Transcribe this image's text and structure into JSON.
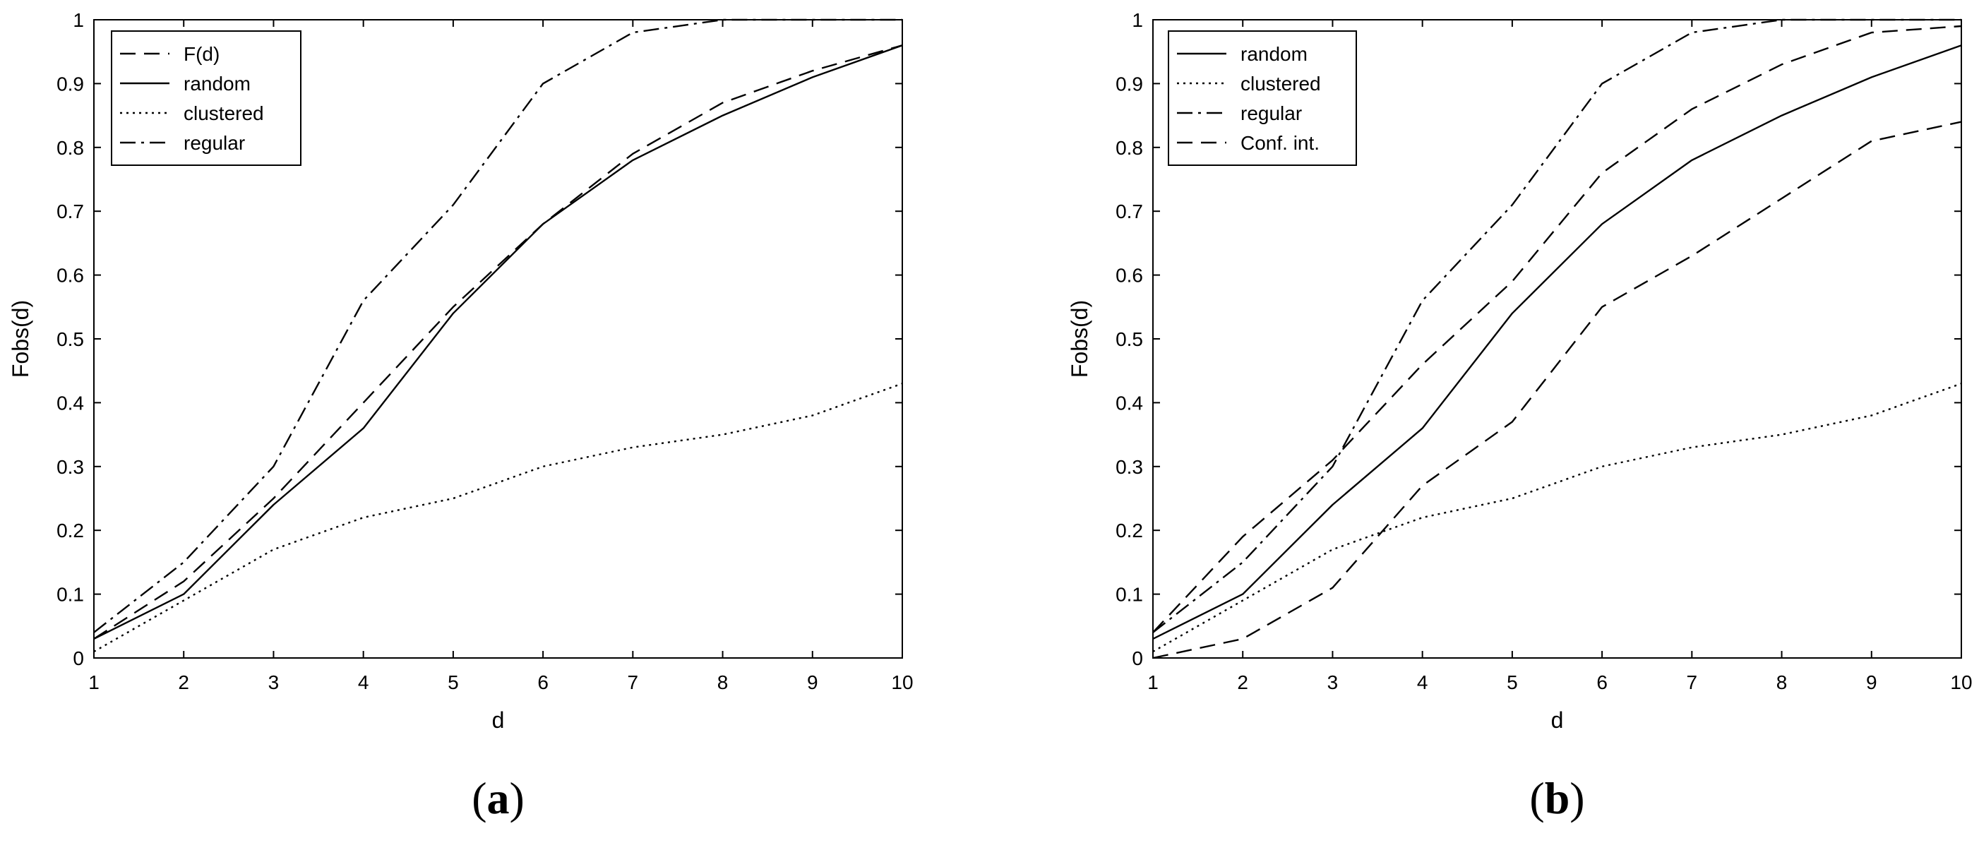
{
  "chart_data": [
    {
      "type": "line",
      "panel_label": "(a)",
      "panel_letter": "a",
      "xlabel": "d",
      "ylabel": "Fobs(d)",
      "xlim": [
        1,
        10
      ],
      "ylim": [
        0,
        1
      ],
      "x_ticks": [
        1,
        2,
        3,
        4,
        5,
        6,
        7,
        8,
        9,
        10
      ],
      "y_ticks": [
        0,
        0.1,
        0.2,
        0.3,
        0.4,
        0.5,
        0.6,
        0.7,
        0.8,
        0.9,
        1
      ],
      "y_tick_labels": [
        "0",
        "0.1",
        "0.2",
        "0.3",
        "0.4",
        "0.5",
        "0.6",
        "0.7",
        "0.8",
        "0.9",
        "1"
      ],
      "x": [
        1,
        2,
        3,
        4,
        5,
        6,
        7,
        8,
        9,
        10
      ],
      "legend_position": "top-left",
      "grid": false,
      "series": [
        {
          "name": "F(d)",
          "style": "dashed",
          "values": [
            0.03,
            0.12,
            0.25,
            0.4,
            0.55,
            0.68,
            0.79,
            0.87,
            0.92,
            0.96
          ]
        },
        {
          "name": "random",
          "style": "solid",
          "values": [
            0.03,
            0.1,
            0.24,
            0.36,
            0.54,
            0.68,
            0.78,
            0.85,
            0.91,
            0.96
          ]
        },
        {
          "name": "clustered",
          "style": "dotted",
          "values": [
            0.01,
            0.09,
            0.17,
            0.22,
            0.25,
            0.3,
            0.33,
            0.35,
            0.38,
            0.43
          ]
        },
        {
          "name": "regular",
          "style": "dashdot",
          "values": [
            0.04,
            0.15,
            0.3,
            0.56,
            0.71,
            0.9,
            0.98,
            1.0,
            1.0,
            1.0
          ]
        }
      ]
    },
    {
      "type": "line",
      "panel_label": "(b)",
      "panel_letter": "b",
      "xlabel": "d",
      "ylabel": "Fobs(d)",
      "xlim": [
        1,
        10
      ],
      "ylim": [
        0,
        1
      ],
      "x_ticks": [
        1,
        2,
        3,
        4,
        5,
        6,
        7,
        8,
        9,
        10
      ],
      "y_ticks": [
        0,
        0.1,
        0.2,
        0.3,
        0.4,
        0.5,
        0.6,
        0.7,
        0.8,
        0.9,
        1
      ],
      "y_tick_labels": [
        "0",
        "0.1",
        "0.2",
        "0.3",
        "0.4",
        "0.5",
        "0.6",
        "0.7",
        "0.8",
        "0.9",
        "1"
      ],
      "x": [
        1,
        2,
        3,
        4,
        5,
        6,
        7,
        8,
        9,
        10
      ],
      "legend_position": "top-left",
      "grid": false,
      "series": [
        {
          "name": "random",
          "style": "solid",
          "values": [
            0.03,
            0.1,
            0.24,
            0.36,
            0.54,
            0.68,
            0.78,
            0.85,
            0.91,
            0.96
          ]
        },
        {
          "name": "clustered",
          "style": "dotted",
          "values": [
            0.01,
            0.09,
            0.17,
            0.22,
            0.25,
            0.3,
            0.33,
            0.35,
            0.38,
            0.43
          ]
        },
        {
          "name": "regular",
          "style": "dashdot",
          "values": [
            0.04,
            0.15,
            0.3,
            0.56,
            0.71,
            0.9,
            0.98,
            1.0,
            1.0,
            1.0
          ]
        },
        {
          "name": "Conf. int.",
          "style": "dashed",
          "values": [
            0.04,
            0.19,
            0.31,
            0.46,
            0.59,
            0.76,
            0.86,
            0.93,
            0.98,
            0.99
          ]
        },
        {
          "name": "",
          "legend": false,
          "style": "dashed",
          "values": [
            0.0,
            0.03,
            0.11,
            0.27,
            0.37,
            0.55,
            0.63,
            0.72,
            0.81,
            0.84
          ]
        }
      ]
    }
  ]
}
